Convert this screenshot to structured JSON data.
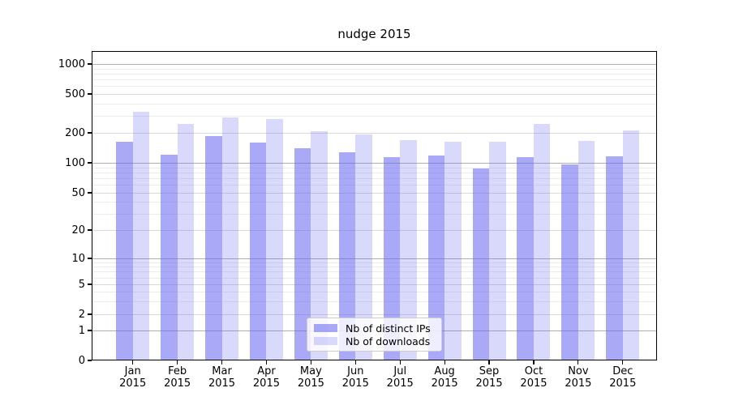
{
  "title": "nudge 2015",
  "chart_data": {
    "type": "bar",
    "title": "nudge 2015",
    "categories": [
      "Jan 2015",
      "Feb 2015",
      "Mar 2015",
      "Apr 2015",
      "May 2015",
      "Jun 2015",
      "Jul 2015",
      "Aug 2015",
      "Sep 2015",
      "Oct 2015",
      "Nov 2015",
      "Dec 2015"
    ],
    "month_labels": [
      "Jan",
      "Feb",
      "Mar",
      "Apr",
      "May",
      "Jun",
      "Jul",
      "Aug",
      "Sep",
      "Oct",
      "Nov",
      "Dec"
    ],
    "year_label": "2015",
    "series": [
      {
        "name": "Nb of distinct IPs",
        "values": [
          163,
          121,
          184,
          160,
          141,
          128,
          115,
          118,
          87,
          114,
          97,
          116
        ]
      },
      {
        "name": "Nb of downloads",
        "values": [
          330,
          246,
          289,
          279,
          209,
          191,
          169,
          163,
          162,
          247,
          167,
          213
        ]
      }
    ],
    "yscale": "symlog",
    "ytick_values": [
      0,
      1,
      2,
      5,
      10,
      20,
      50,
      100,
      200,
      500,
      1000
    ],
    "ytick_labels": [
      "0",
      "1",
      "2",
      "5",
      "10",
      "20",
      "50",
      "100",
      "200",
      "500",
      "1000"
    ],
    "ylim": [
      0,
      1350
    ],
    "grid": true,
    "legend_position": "lower center"
  },
  "legend": {
    "items": [
      {
        "label": "Nb of distinct IPs"
      },
      {
        "label": "Nb of downloads"
      }
    ]
  },
  "colors": {
    "bar_distinct_ips": "rgba(102,102,240,0.56)",
    "bar_downloads": "rgba(102,102,240,0.25)",
    "grid_major": "#b0b0b0",
    "grid_labeled_minor": "#d9d9d9",
    "grid_minor": "#ececec",
    "axis": "#000000",
    "legend_bg": "rgba(255,255,255,0.8)",
    "legend_border": "#cccccc"
  }
}
